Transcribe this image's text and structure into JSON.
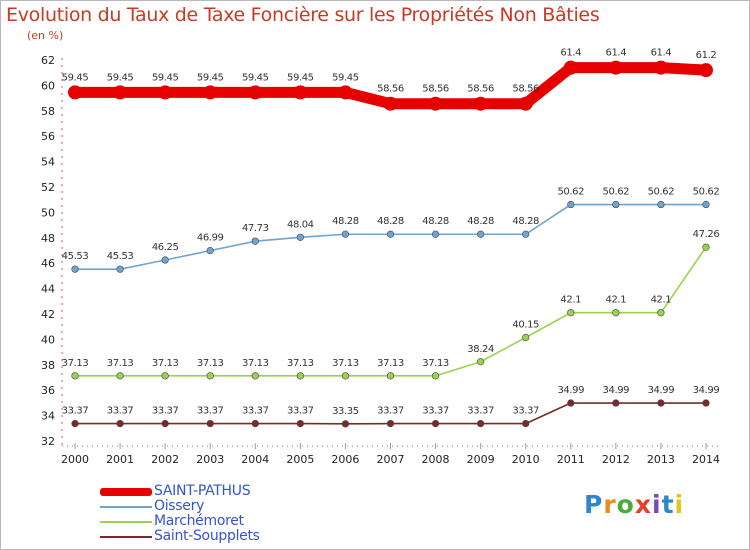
{
  "header": {
    "title": "Evolution du Taux de Taxe Foncière sur les Propriétés Non Bâties",
    "subtitle": "(en %)"
  },
  "chart_data": {
    "type": "line",
    "title": "Evolution du Taux de Taxe Foncière sur les Propriétés Non Bâties",
    "ylabel": "(en %)",
    "xlabel": "",
    "ylim": [
      32,
      62
    ],
    "yticks": [
      32,
      34,
      36,
      38,
      40,
      42,
      44,
      46,
      48,
      50,
      52,
      54,
      56,
      58,
      60,
      62
    ],
    "grid": false,
    "legend_position": "bottom-left",
    "categories": [
      "2000",
      "2001",
      "2002",
      "2003",
      "2004",
      "2005",
      "2006",
      "2007",
      "2008",
      "2009",
      "2010",
      "2011",
      "2012",
      "2013",
      "2014"
    ],
    "series": [
      {
        "name": "SAINT-PATHUS",
        "color": "#e60000",
        "values": [
          59.45,
          59.45,
          59.45,
          59.45,
          59.45,
          59.45,
          59.45,
          58.56,
          58.56,
          58.56,
          58.56,
          61.4,
          61.4,
          61.4,
          61.2
        ],
        "labels": [
          "59.45",
          "59.45",
          "59.45",
          "59.45",
          "59.45",
          "59.45",
          "59.45",
          "58.56",
          "58.56",
          "58.56",
          "58.56",
          "61.4",
          "61.4",
          "61.4",
          "61.2"
        ]
      },
      {
        "name": "Oissery",
        "color": "#6fa3d0",
        "values": [
          45.53,
          45.53,
          46.25,
          46.99,
          47.73,
          48.04,
          48.28,
          48.28,
          48.28,
          48.28,
          48.28,
          50.62,
          50.62,
          50.62,
          50.62
        ],
        "labels": [
          "45.53",
          "45.53",
          "46.25",
          "46.99",
          "47.73",
          "48.04",
          "48.28",
          "48.28",
          "48.28",
          "48.28",
          "48.28",
          "50.62",
          "50.62",
          "50.62",
          "50.62"
        ]
      },
      {
        "name": "Marchémoret",
        "color": "#99d34f",
        "values": [
          37.13,
          37.13,
          37.13,
          37.13,
          37.13,
          37.13,
          37.13,
          37.13,
          37.13,
          38.24,
          40.15,
          42.1,
          42.1,
          42.1,
          47.26
        ],
        "labels": [
          "37.13",
          "37.13",
          "37.13",
          "37.13",
          "37.13",
          "37.13",
          "37.13",
          "37.13",
          "37.13",
          "38.24",
          "40.15",
          "42.1",
          "42.1",
          "42.1",
          "47.26"
        ]
      },
      {
        "name": "Saint-Soupplets",
        "color": "#7a2a2a",
        "values": [
          33.37,
          33.37,
          33.37,
          33.37,
          33.37,
          33.37,
          33.35,
          33.37,
          33.37,
          33.37,
          33.37,
          34.99,
          34.99,
          34.99,
          34.99
        ],
        "labels": [
          "33.37",
          "33.37",
          "33.37",
          "33.37",
          "33.37",
          "33.37",
          "33.35",
          "33.37",
          "33.37",
          "33.37",
          "33.37",
          "34.99",
          "34.99",
          "34.99",
          "34.99"
        ]
      }
    ]
  },
  "legend": {
    "items": [
      {
        "label": "SAINT-PATHUS",
        "line_color": "#e60000",
        "text_color": "#3355cc"
      },
      {
        "label": "Oissery",
        "line_color": "#6fa3d0",
        "text_color": "#3355cc"
      },
      {
        "label": "Marchémoret",
        "line_color": "#99d34f",
        "text_color": "#3355cc"
      },
      {
        "label": "Saint-Soupplets",
        "line_color": "#7a2a2a",
        "text_color": "#3355cc"
      }
    ]
  },
  "logo": {
    "text": "Proxiti",
    "letter_colors": [
      "#2f86c9",
      "#ef8a1a",
      "#4aaa3a",
      "#e8402a",
      "#7a4bb0",
      "#2f86c9",
      "#e8c21a"
    ]
  }
}
